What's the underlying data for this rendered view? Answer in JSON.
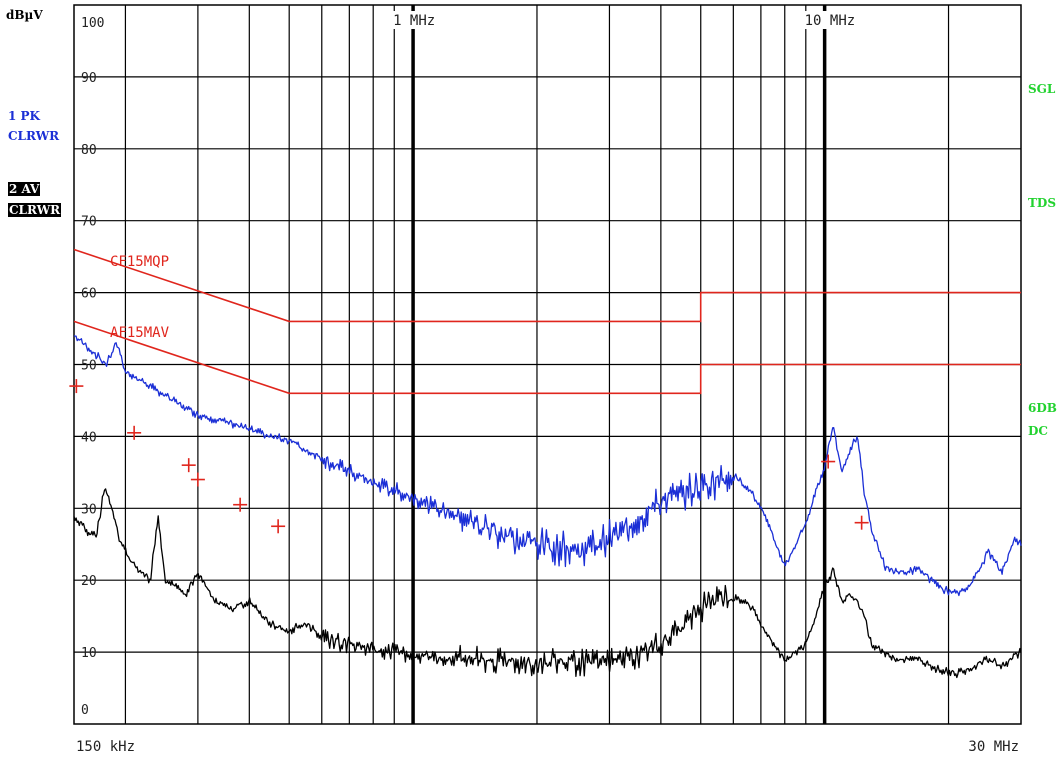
{
  "chart_data": {
    "type": "line",
    "ylabel": "dBµV",
    "x_scale": "log",
    "xlim_hz": [
      150000,
      30000000
    ],
    "ylim": [
      0,
      100
    ],
    "y_ticks": [
      0,
      10,
      20,
      30,
      40,
      50,
      60,
      70,
      80,
      90,
      100
    ],
    "grid": true,
    "x_labels": [
      {
        "text": "150 kHz",
        "x": 150000
      },
      {
        "text": "1 MHz",
        "x": 1000000
      },
      {
        "text": "10 MHz",
        "x": 10000000
      },
      {
        "text": "30 MHz",
        "x": 30000000
      }
    ],
    "limit_lines": [
      {
        "name": "CF15MQP",
        "color": "#e0261d",
        "points": [
          [
            150000,
            66
          ],
          [
            500000,
            56
          ],
          [
            5000000,
            56
          ],
          [
            5000000,
            60
          ],
          [
            30000000,
            60
          ]
        ]
      },
      {
        "name": "AF15MAV",
        "color": "#e0261d",
        "points": [
          [
            150000,
            56
          ],
          [
            500000,
            46
          ],
          [
            5000000,
            46
          ],
          [
            5000000,
            50
          ],
          [
            30000000,
            50
          ]
        ]
      }
    ],
    "series": [
      {
        "name": "1 PK",
        "color": "#1b2fd6",
        "points": [
          [
            150000,
            54
          ],
          [
            165000,
            52
          ],
          [
            180000,
            50
          ],
          [
            190000,
            53
          ],
          [
            200000,
            49
          ],
          [
            230000,
            47
          ],
          [
            260000,
            45
          ],
          [
            300000,
            43
          ],
          [
            350000,
            42
          ],
          [
            400000,
            41
          ],
          [
            450000,
            40
          ],
          [
            500000,
            39.5
          ],
          [
            550000,
            38
          ],
          [
            600000,
            37
          ],
          [
            700000,
            35
          ],
          [
            800000,
            33.5
          ],
          [
            900000,
            32.5
          ],
          [
            1000000,
            31.5
          ],
          [
            1200000,
            29.5
          ],
          [
            1400000,
            28
          ],
          [
            1700000,
            26
          ],
          [
            2000000,
            25
          ],
          [
            2500000,
            24
          ],
          [
            3000000,
            26
          ],
          [
            3500000,
            28
          ],
          [
            4000000,
            31
          ],
          [
            5000000,
            33
          ],
          [
            6000000,
            34.5
          ],
          [
            6500000,
            33
          ],
          [
            7000000,
            30
          ],
          [
            7500000,
            26
          ],
          [
            8000000,
            22
          ],
          [
            8500000,
            25
          ],
          [
            9000000,
            28
          ],
          [
            9500000,
            32
          ],
          [
            10000000,
            36
          ],
          [
            10500000,
            41.5
          ],
          [
            11000000,
            35
          ],
          [
            11500000,
            38
          ],
          [
            12000000,
            40
          ],
          [
            12500000,
            32
          ],
          [
            13000000,
            27
          ],
          [
            14000000,
            22
          ],
          [
            15000000,
            21
          ],
          [
            17000000,
            21.5
          ],
          [
            19000000,
            19
          ],
          [
            21000000,
            18
          ],
          [
            23000000,
            20
          ],
          [
            25000000,
            24
          ],
          [
            27000000,
            21
          ],
          [
            29000000,
            26
          ],
          [
            30000000,
            25
          ]
        ]
      },
      {
        "name": "2 AV",
        "color": "#000000",
        "points": [
          [
            150000,
            29
          ],
          [
            160000,
            27
          ],
          [
            170000,
            26
          ],
          [
            178000,
            33
          ],
          [
            185000,
            30
          ],
          [
            195000,
            25
          ],
          [
            210000,
            22
          ],
          [
            230000,
            20
          ],
          [
            240000,
            29
          ],
          [
            250000,
            20
          ],
          [
            280000,
            18
          ],
          [
            300000,
            21
          ],
          [
            330000,
            17
          ],
          [
            360000,
            16
          ],
          [
            400000,
            17
          ],
          [
            450000,
            14
          ],
          [
            500000,
            13
          ],
          [
            550000,
            14
          ],
          [
            600000,
            12
          ],
          [
            700000,
            11
          ],
          [
            800000,
            10.5
          ],
          [
            900000,
            10
          ],
          [
            1000000,
            9.5
          ],
          [
            1300000,
            9
          ],
          [
            1700000,
            8.5
          ],
          [
            2200000,
            8.5
          ],
          [
            2800000,
            8.5
          ],
          [
            3500000,
            9.5
          ],
          [
            4200000,
            12
          ],
          [
            5000000,
            16
          ],
          [
            5600000,
            18
          ],
          [
            6500000,
            17
          ],
          [
            7000000,
            14
          ],
          [
            7500000,
            11
          ],
          [
            8000000,
            9
          ],
          [
            8500000,
            10
          ],
          [
            9000000,
            11
          ],
          [
            9500000,
            15
          ],
          [
            10000000,
            19
          ],
          [
            10500000,
            21.5
          ],
          [
            11000000,
            17
          ],
          [
            11500000,
            18
          ],
          [
            12000000,
            17
          ],
          [
            12500000,
            15
          ],
          [
            13000000,
            11
          ],
          [
            15000000,
            9
          ],
          [
            17000000,
            9
          ],
          [
            19000000,
            7.5
          ],
          [
            21000000,
            7
          ],
          [
            23000000,
            8
          ],
          [
            25000000,
            9
          ],
          [
            27000000,
            8
          ],
          [
            29000000,
            9.5
          ],
          [
            30000000,
            10
          ]
        ]
      }
    ],
    "markers": [
      {
        "x": 152000,
        "y": 47
      },
      {
        "x": 210000,
        "y": 40.5
      },
      {
        "x": 285000,
        "y": 36
      },
      {
        "x": 300000,
        "y": 34
      },
      {
        "x": 380000,
        "y": 30.5
      },
      {
        "x": 470000,
        "y": 27.5
      },
      {
        "x": 10200000,
        "y": 36.5
      },
      {
        "x": 12300000,
        "y": 28
      }
    ]
  },
  "left_panel": {
    "trace1_line1": "1 PK",
    "trace1_line2": "CLRWR",
    "trace2_line1": "2 AV",
    "trace2_line2": "CLRWR"
  },
  "right_panel": {
    "sgl": "SGL",
    "tds": "TDS",
    "db_line1": "6DB",
    "db_line2": "DC"
  },
  "limit_labels": {
    "qp": "CF15MQP",
    "av": "AF15MAV"
  },
  "colors": {
    "grid": "#000000",
    "limit": "#e0261d",
    "pk": "#1b2fd6",
    "av": "#000000",
    "status": "#22d22f"
  }
}
